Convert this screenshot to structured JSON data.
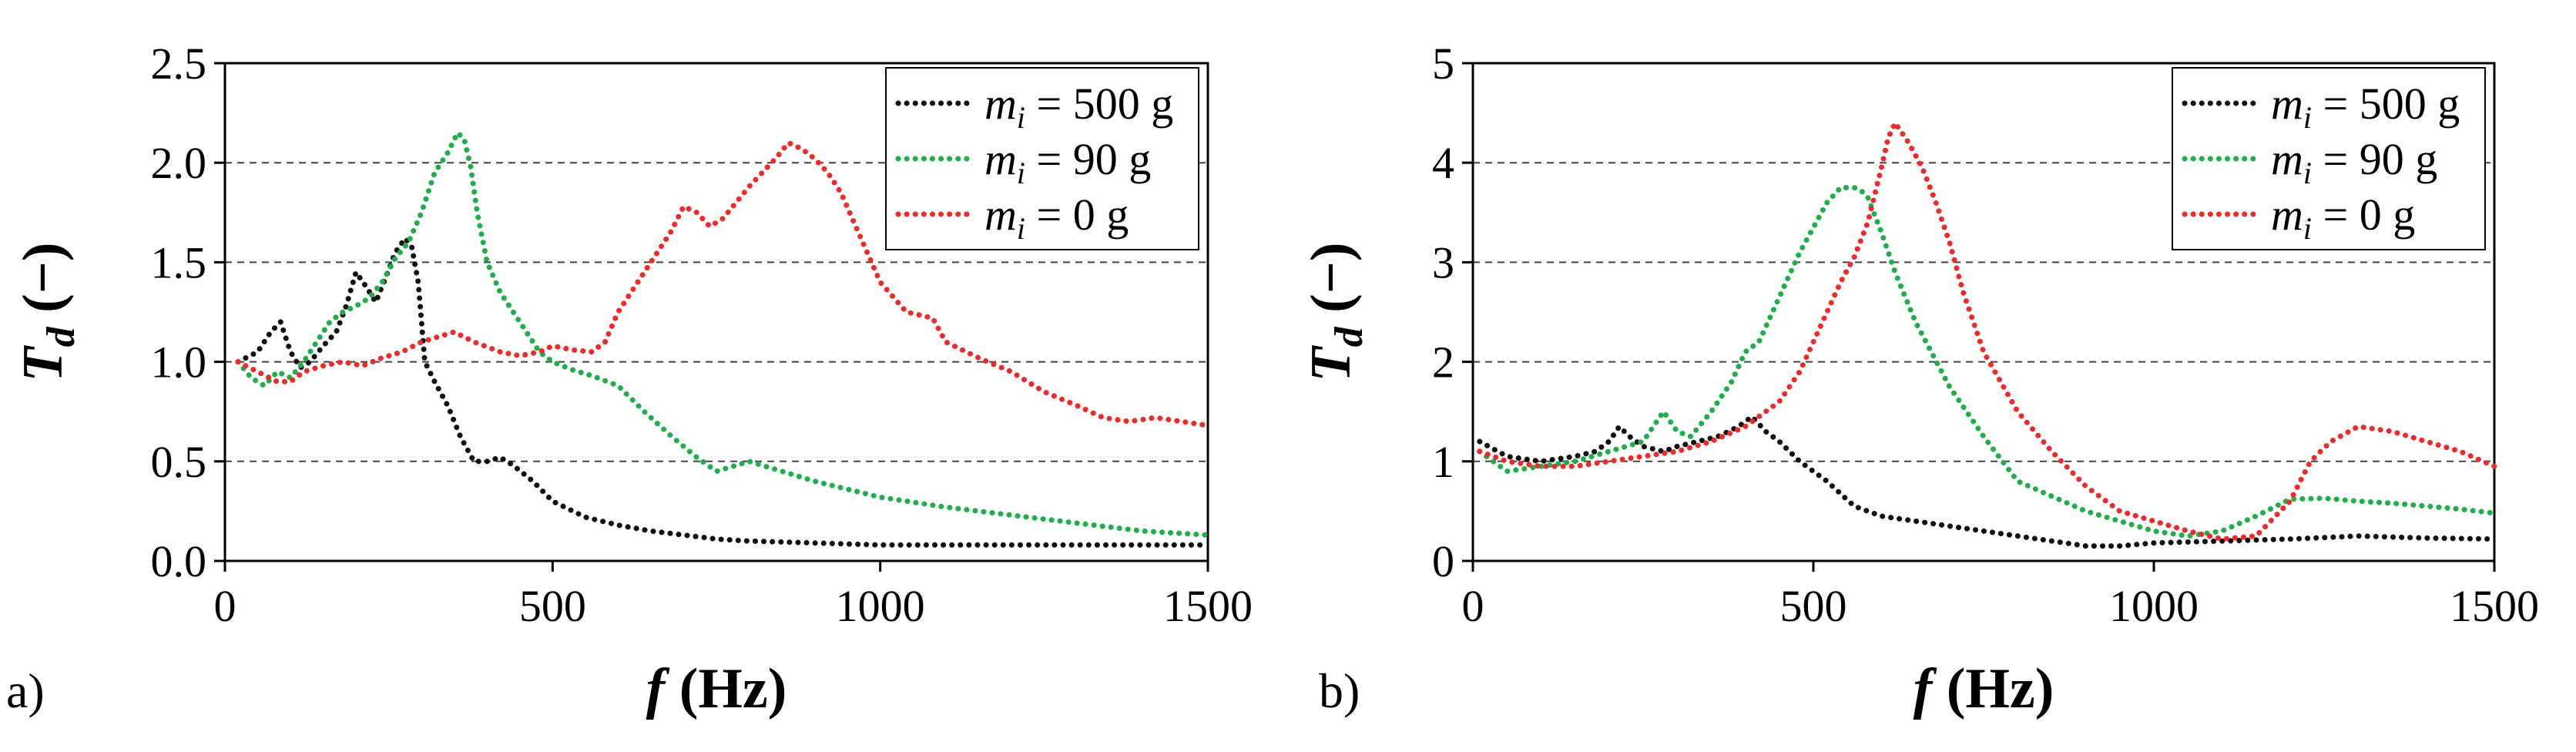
{
  "chart_data": [
    {
      "type": "line",
      "panel_label": "a)",
      "xlabel_var": "f",
      "xlabel_unit": " (Hz)",
      "ylabel_var": "T",
      "ylabel_sub": "d",
      "ylabel_unit": " (−)",
      "xlim": [
        0,
        1500
      ],
      "ylim": [
        0,
        2.5
      ],
      "xticks": [
        0,
        500,
        1000,
        1500
      ],
      "xtick_labels": [
        "0",
        "500",
        "1000",
        "1500"
      ],
      "yticks": [
        0,
        0.5,
        1.0,
        1.5,
        2.0,
        2.5
      ],
      "ytick_labels": [
        "0.0",
        "0.5",
        "1.0",
        "1.5",
        "2.0",
        "2.5"
      ],
      "grid": "horizontal dashed",
      "legend_position": "top-right",
      "series": [
        {
          "name": "500",
          "label_var": "m",
          "label_sub": "i",
          "label_text": " = 500 g",
          "color": "#111111",
          "x": [
            20,
            50,
            70,
            85,
            100,
            115,
            130,
            150,
            170,
            185,
            200,
            215,
            230,
            245,
            260,
            275,
            285,
            295,
            305,
            320,
            340,
            360,
            380,
            400,
            420,
            440,
            470,
            500,
            550,
            600,
            650,
            700,
            750,
            800,
            900,
            1000,
            1100,
            1200,
            1300,
            1400,
            1500
          ],
          "y": [
            1.0,
            1.05,
            1.15,
            1.2,
            1.05,
            0.97,
            1.0,
            1.08,
            1.15,
            1.28,
            1.45,
            1.38,
            1.3,
            1.42,
            1.55,
            1.62,
            1.58,
            1.4,
            1.0,
            0.9,
            0.78,
            0.62,
            0.5,
            0.5,
            0.52,
            0.48,
            0.4,
            0.3,
            0.22,
            0.18,
            0.15,
            0.13,
            0.11,
            0.1,
            0.09,
            0.08,
            0.08,
            0.08,
            0.08,
            0.08,
            0.08
          ]
        },
        {
          "name": "90",
          "label_var": "m",
          "label_sub": "i",
          "label_text": " = 90 g",
          "color": "#1fae4b",
          "x": [
            20,
            40,
            60,
            80,
            100,
            120,
            140,
            160,
            180,
            200,
            220,
            240,
            260,
            280,
            300,
            320,
            340,
            355,
            365,
            375,
            385,
            400,
            420,
            440,
            460,
            480,
            500,
            530,
            560,
            600,
            640,
            680,
            720,
            750,
            780,
            800,
            850,
            900,
            1000,
            1100,
            1200,
            1300,
            1400,
            1500
          ],
          "y": [
            1.0,
            0.92,
            0.88,
            0.95,
            0.92,
            1.0,
            1.1,
            1.2,
            1.25,
            1.28,
            1.32,
            1.4,
            1.52,
            1.6,
            1.75,
            1.95,
            2.05,
            2.15,
            2.12,
            1.98,
            1.75,
            1.5,
            1.35,
            1.25,
            1.15,
            1.05,
            1.0,
            0.96,
            0.93,
            0.88,
            0.75,
            0.63,
            0.52,
            0.45,
            0.48,
            0.5,
            0.45,
            0.4,
            0.32,
            0.27,
            0.23,
            0.19,
            0.15,
            0.13
          ]
        },
        {
          "name": "0",
          "label_var": "m",
          "label_sub": "i",
          "label_text": " = 0 g",
          "color": "#ee2a2a",
          "x": [
            20,
            50,
            80,
            100,
            120,
            150,
            180,
            210,
            240,
            270,
            300,
            330,
            350,
            380,
            420,
            450,
            480,
            500,
            530,
            560,
            580,
            600,
            640,
            680,
            700,
            720,
            740,
            760,
            780,
            800,
            820,
            840,
            860,
            880,
            900,
            920,
            940,
            960,
            980,
            1000,
            1040,
            1080,
            1100,
            1150,
            1200,
            1250,
            1300,
            1340,
            1380,
            1420,
            1460,
            1500
          ],
          "y": [
            1.0,
            0.95,
            0.9,
            0.9,
            0.95,
            0.98,
            1.0,
            0.98,
            1.02,
            1.05,
            1.1,
            1.13,
            1.15,
            1.1,
            1.05,
            1.03,
            1.05,
            1.08,
            1.06,
            1.05,
            1.1,
            1.25,
            1.45,
            1.65,
            1.78,
            1.75,
            1.68,
            1.72,
            1.8,
            1.88,
            1.95,
            2.02,
            2.1,
            2.07,
            2.02,
            1.95,
            1.85,
            1.7,
            1.55,
            1.4,
            1.25,
            1.22,
            1.1,
            1.02,
            0.95,
            0.85,
            0.78,
            0.72,
            0.7,
            0.72,
            0.7,
            0.68
          ]
        }
      ]
    },
    {
      "type": "line",
      "panel_label": "b)",
      "xlabel_var": "f",
      "xlabel_unit": " (Hz)",
      "ylabel_var": "T",
      "ylabel_sub": "d",
      "ylabel_unit": " (−)",
      "xlim": [
        0,
        1500
      ],
      "ylim": [
        0,
        5
      ],
      "xticks": [
        0,
        500,
        1000,
        1500
      ],
      "xtick_labels": [
        "0",
        "500",
        "1000",
        "1500"
      ],
      "yticks": [
        0,
        1,
        2,
        3,
        4,
        5
      ],
      "ytick_labels": [
        "0",
        "1",
        "2",
        "3",
        "4",
        "5"
      ],
      "grid": "horizontal dashed",
      "legend_position": "top-right",
      "series": [
        {
          "name": "500",
          "label_var": "m",
          "label_sub": "i",
          "label_text": " = 500 g",
          "color": "#111111",
          "x": [
            10,
            50,
            100,
            150,
            180,
            200,
            215,
            230,
            250,
            280,
            300,
            330,
            360,
            390,
            410,
            430,
            450,
            480,
            520,
            560,
            600,
            700,
            800,
            900,
            950,
            1000,
            1100,
            1200,
            1300,
            1400,
            1500
          ],
          "y": [
            1.2,
            1.05,
            1.0,
            1.05,
            1.1,
            1.2,
            1.35,
            1.25,
            1.15,
            1.1,
            1.15,
            1.2,
            1.25,
            1.35,
            1.45,
            1.3,
            1.2,
            1.0,
            0.8,
            0.55,
            0.45,
            0.35,
            0.25,
            0.15,
            0.15,
            0.18,
            0.2,
            0.22,
            0.25,
            0.23,
            0.22
          ]
        },
        {
          "name": "90",
          "label_var": "m",
          "label_sub": "i",
          "label_text": " = 90 g",
          "color": "#1fae4b",
          "x": [
            10,
            50,
            100,
            150,
            200,
            250,
            280,
            300,
            320,
            350,
            380,
            400,
            420,
            440,
            460,
            480,
            500,
            520,
            540,
            560,
            570,
            580,
            600,
            620,
            650,
            700,
            750,
            800,
            900,
            1000,
            1050,
            1100,
            1150,
            1200,
            1250,
            1300,
            1350,
            1400,
            1450,
            1500
          ],
          "y": [
            1.1,
            0.9,
            0.95,
            1.0,
            1.1,
            1.2,
            1.5,
            1.3,
            1.25,
            1.5,
            1.8,
            2.1,
            2.2,
            2.5,
            2.8,
            3.1,
            3.35,
            3.6,
            3.75,
            3.75,
            3.72,
            3.65,
            3.3,
            2.9,
            2.4,
            1.75,
            1.25,
            0.8,
            0.5,
            0.3,
            0.25,
            0.3,
            0.45,
            0.62,
            0.63,
            0.6,
            0.58,
            0.55,
            0.52,
            0.48
          ]
        },
        {
          "name": "0",
          "label_var": "m",
          "label_sub": "i",
          "label_text": " = 0 g",
          "color": "#ee2a2a",
          "x": [
            10,
            50,
            100,
            150,
            200,
            250,
            300,
            350,
            400,
            450,
            480,
            500,
            520,
            540,
            560,
            580,
            600,
            610,
            620,
            640,
            660,
            680,
            700,
            720,
            750,
            800,
            850,
            900,
            950,
            1000,
            1050,
            1100,
            1150,
            1200,
            1230,
            1260,
            1300,
            1350,
            1400,
            1450,
            1500
          ],
          "y": [
            1.1,
            1.0,
            0.95,
            0.95,
            1.0,
            1.05,
            1.1,
            1.2,
            1.35,
            1.6,
            1.9,
            2.2,
            2.5,
            2.8,
            3.05,
            3.4,
            3.95,
            4.25,
            4.4,
            4.2,
            3.95,
            3.6,
            3.2,
            2.7,
            2.1,
            1.5,
            1.1,
            0.75,
            0.5,
            0.4,
            0.3,
            0.22,
            0.25,
            0.6,
            1.0,
            1.2,
            1.35,
            1.3,
            1.2,
            1.1,
            0.95
          ]
        }
      ]
    }
  ]
}
